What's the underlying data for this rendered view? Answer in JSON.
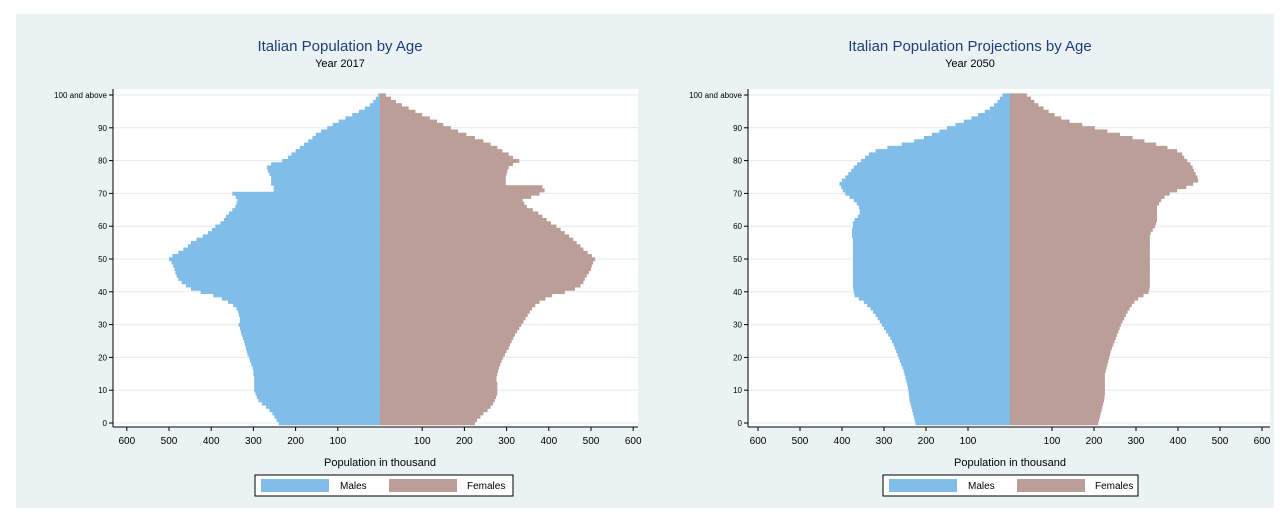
{
  "colors": {
    "males": "#80bde8",
    "females": "#bc9e98",
    "panel_background": "#eaf2f3",
    "plot_background": "#ffffff",
    "gridline": "#e2ecef",
    "title": "#1f3e7a"
  },
  "chart_data": [
    {
      "type": "bar",
      "orientation": "horizontal",
      "title": "Italian Population by Age",
      "subtitle": "Year 2017",
      "xlabel": "Population in thousand",
      "ylabel": "",
      "x_ticks": [
        "600",
        "500",
        "400",
        "300",
        "200",
        "100",
        "100",
        "200",
        "300",
        "400",
        "500",
        "600"
      ],
      "y_ticks": [
        "0",
        "10",
        "20",
        "30",
        "40",
        "50",
        "60",
        "70",
        "80",
        "90",
        "100 and above"
      ],
      "xlim": [
        -600,
        600
      ],
      "ylim": [
        0,
        100
      ],
      "grid": true,
      "legend_position": "bottom",
      "legend": [
        "Males",
        "Females"
      ],
      "categories": [
        "0",
        "1",
        "2",
        "3",
        "4",
        "5",
        "6",
        "7",
        "8",
        "9",
        "10",
        "11",
        "12",
        "13",
        "14",
        "15",
        "16",
        "17",
        "18",
        "19",
        "20",
        "21",
        "22",
        "23",
        "24",
        "25",
        "26",
        "27",
        "28",
        "29",
        "30",
        "31",
        "32",
        "33",
        "34",
        "35",
        "36",
        "37",
        "38",
        "39",
        "40",
        "41",
        "42",
        "43",
        "44",
        "45",
        "46",
        "47",
        "48",
        "49",
        "50",
        "51",
        "52",
        "53",
        "54",
        "55",
        "56",
        "57",
        "58",
        "59",
        "60",
        "61",
        "62",
        "63",
        "64",
        "65",
        "66",
        "67",
        "68",
        "69",
        "70",
        "71",
        "72",
        "73",
        "74",
        "75",
        "76",
        "77",
        "78",
        "79",
        "80",
        "81",
        "82",
        "83",
        "84",
        "85",
        "86",
        "87",
        "88",
        "89",
        "90",
        "91",
        "92",
        "93",
        "94",
        "95",
        "96",
        "97",
        "98",
        "99",
        "100 and above"
      ],
      "series": [
        {
          "name": "Males",
          "values": [
            240,
            245,
            250,
            255,
            262,
            270,
            280,
            288,
            292,
            295,
            298,
            298,
            298,
            298,
            298,
            300,
            300,
            302,
            305,
            308,
            310,
            314,
            316,
            318,
            320,
            322,
            325,
            328,
            330,
            332,
            335,
            332,
            332,
            334,
            336,
            340,
            348,
            360,
            375,
            395,
            425,
            448,
            460,
            470,
            478,
            482,
            485,
            487,
            490,
            494,
            500,
            492,
            478,
            466,
            455,
            448,
            435,
            420,
            408,
            398,
            390,
            378,
            370,
            365,
            358,
            350,
            343,
            340,
            338,
            342,
            350,
            252,
            252,
            258,
            258,
            258,
            262,
            266,
            268,
            258,
            232,
            218,
            210,
            200,
            190,
            180,
            170,
            160,
            152,
            140,
            125,
            112,
            98,
            82,
            66,
            50,
            36,
            24,
            16,
            10,
            4
          ]
        },
        {
          "name": "Females",
          "values": [
            225,
            230,
            238,
            245,
            255,
            262,
            268,
            272,
            275,
            278,
            278,
            278,
            278,
            276,
            276,
            278,
            280,
            282,
            285,
            288,
            292,
            296,
            300,
            305,
            308,
            312,
            316,
            320,
            325,
            330,
            335,
            340,
            345,
            350,
            355,
            360,
            368,
            378,
            392,
            408,
            438,
            462,
            475,
            482,
            485,
            490,
            495,
            500,
            502,
            505,
            510,
            502,
            492,
            482,
            475,
            466,
            458,
            448,
            438,
            428,
            418,
            405,
            395,
            385,
            375,
            362,
            348,
            342,
            338,
            358,
            378,
            390,
            385,
            298,
            298,
            298,
            300,
            302,
            305,
            315,
            330,
            315,
            305,
            290,
            278,
            262,
            245,
            225,
            205,
            185,
            168,
            150,
            135,
            118,
            100,
            84,
            68,
            52,
            38,
            26,
            14
          ]
        }
      ]
    },
    {
      "type": "bar",
      "orientation": "horizontal",
      "title": "Italian Population Projections by Age",
      "subtitle": "Year 2050",
      "xlabel": "Population in thousand",
      "ylabel": "",
      "x_ticks": [
        "600",
        "500",
        "400",
        "300",
        "200",
        "100",
        "100",
        "200",
        "300",
        "400",
        "500",
        "600"
      ],
      "y_ticks": [
        "0",
        "10",
        "20",
        "30",
        "40",
        "50",
        "60",
        "70",
        "80",
        "90",
        "100 and above"
      ],
      "xlim": [
        -600,
        600
      ],
      "ylim": [
        0,
        100
      ],
      "grid": true,
      "legend_position": "bottom",
      "legend": [
        "Males",
        "Females"
      ],
      "categories": [
        "0",
        "1",
        "2",
        "3",
        "4",
        "5",
        "6",
        "7",
        "8",
        "9",
        "10",
        "11",
        "12",
        "13",
        "14",
        "15",
        "16",
        "17",
        "18",
        "19",
        "20",
        "21",
        "22",
        "23",
        "24",
        "25",
        "26",
        "27",
        "28",
        "29",
        "30",
        "31",
        "32",
        "33",
        "34",
        "35",
        "36",
        "37",
        "38",
        "39",
        "40",
        "41",
        "42",
        "43",
        "44",
        "45",
        "46",
        "47",
        "48",
        "49",
        "50",
        "51",
        "52",
        "53",
        "54",
        "55",
        "56",
        "57",
        "58",
        "59",
        "60",
        "61",
        "62",
        "63",
        "64",
        "65",
        "66",
        "67",
        "68",
        "69",
        "70",
        "71",
        "72",
        "73",
        "74",
        "75",
        "76",
        "77",
        "78",
        "79",
        "80",
        "81",
        "82",
        "83",
        "84",
        "85",
        "86",
        "87",
        "88",
        "89",
        "90",
        "91",
        "92",
        "93",
        "94",
        "95",
        "96",
        "97",
        "98",
        "99",
        "100 and above"
      ],
      "series": [
        {
          "name": "Males",
          "values": [
            225,
            227,
            229,
            231,
            233,
            235,
            237,
            239,
            240,
            241,
            242,
            243,
            245,
            247,
            249,
            251,
            253,
            256,
            259,
            262,
            265,
            268,
            271,
            274,
            277,
            281,
            285,
            290,
            295,
            300,
            305,
            310,
            315,
            320,
            326,
            332,
            340,
            348,
            360,
            370,
            372,
            373,
            374,
            374,
            374,
            374,
            374,
            374,
            374,
            374,
            374,
            374,
            374,
            374,
            374,
            374,
            374,
            376,
            376,
            376,
            374,
            374,
            370,
            362,
            358,
            358,
            360,
            365,
            372,
            382,
            392,
            398,
            402,
            406,
            400,
            392,
            385,
            378,
            372,
            364,
            355,
            345,
            336,
            320,
            292,
            258,
            228,
            205,
            186,
            168,
            150,
            130,
            110,
            92,
            76,
            60,
            48,
            38,
            30,
            24,
            18
          ]
        },
        {
          "name": "Females",
          "values": [
            210,
            212,
            214,
            216,
            218,
            220,
            222,
            224,
            225,
            226,
            226,
            226,
            226,
            226,
            226,
            226,
            228,
            230,
            232,
            234,
            236,
            238,
            240,
            243,
            246,
            249,
            252,
            255,
            258,
            261,
            264,
            268,
            272,
            276,
            280,
            285,
            290,
            296,
            305,
            318,
            330,
            332,
            333,
            333,
            333,
            333,
            333,
            333,
            333,
            333,
            333,
            333,
            333,
            333,
            333,
            333,
            333,
            333,
            335,
            340,
            345,
            348,
            350,
            350,
            350,
            350,
            350,
            355,
            360,
            368,
            380,
            398,
            420,
            436,
            448,
            446,
            442,
            438,
            435,
            430,
            422,
            415,
            410,
            398,
            375,
            348,
            320,
            292,
            262,
            232,
            202,
            172,
            142,
            122,
            106,
            92,
            80,
            68,
            58,
            50,
            40
          ]
        }
      ]
    }
  ]
}
